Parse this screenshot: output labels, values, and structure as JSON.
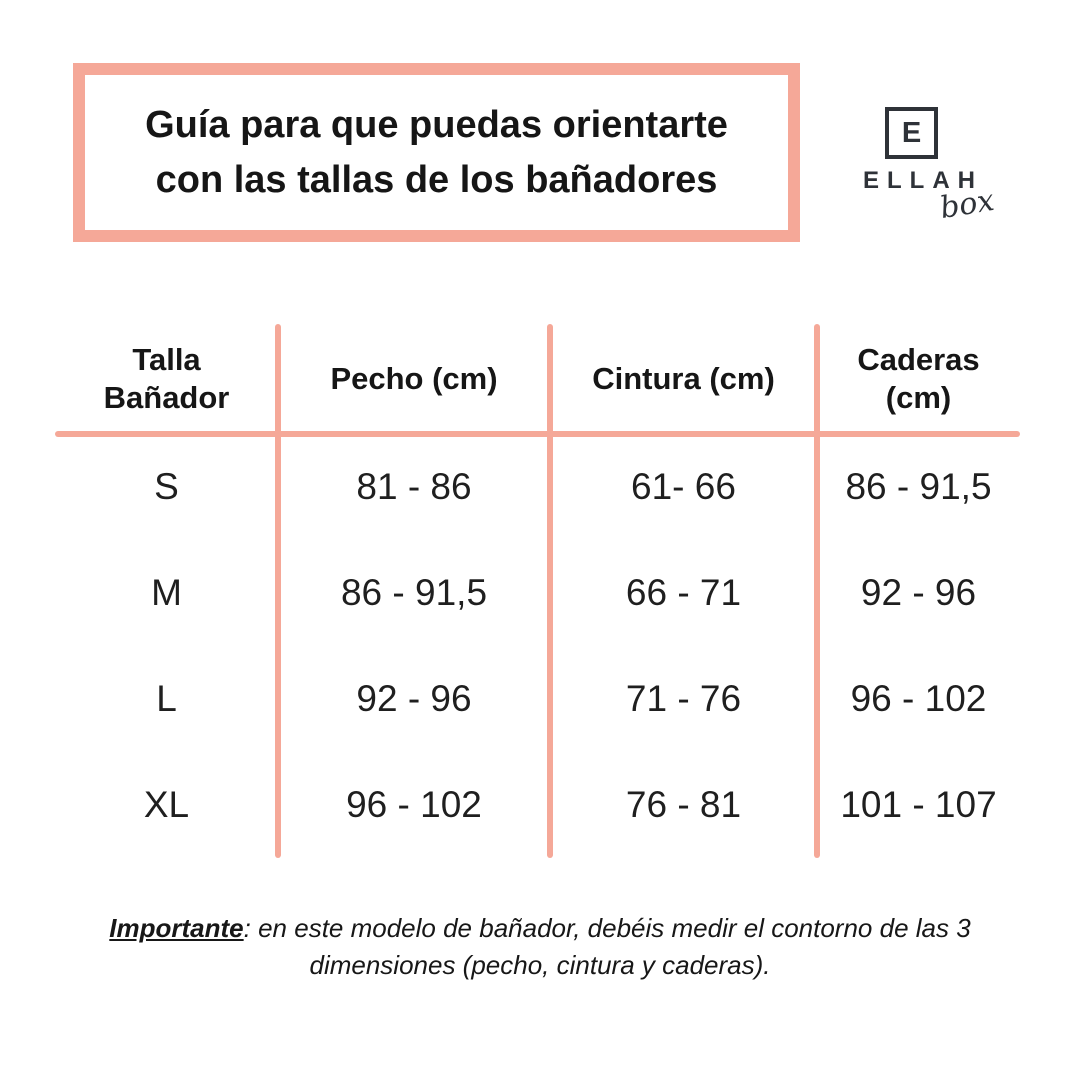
{
  "colors": {
    "accent": "#F5A898",
    "logo": "#2E3238",
    "text": "#161616"
  },
  "title": {
    "line1": "Guía para que puedas orientarte",
    "line2": "con las tallas de los bañadores"
  },
  "logo": {
    "monogram": "E",
    "name": "ELLAH",
    "tagline": "box"
  },
  "table": {
    "headers": {
      "size": {
        "line1": "Talla",
        "line2": "Bañador"
      },
      "chest": {
        "line1": "Pecho (cm)"
      },
      "waist": {
        "line1": "Cintura (cm)"
      },
      "hips": {
        "line1": "Caderas",
        "line2": "(cm)"
      }
    },
    "rows": [
      {
        "size": "S",
        "chest": "81 - 86",
        "waist": "61- 66",
        "hips": "86 - 91,5"
      },
      {
        "size": "M",
        "chest": "86 - 91,5",
        "waist": "66 - 71",
        "hips": "92 - 96"
      },
      {
        "size": "L",
        "chest": "92 - 96",
        "waist": "71 - 76",
        "hips": "96 - 102"
      },
      {
        "size": "XL",
        "chest": "96 - 102",
        "waist": "76 - 81",
        "hips": "101 - 107"
      }
    ]
  },
  "note": {
    "lead": "Importante",
    "line1_rest": ": en este modelo de bañador, debéis medir el contorno de las 3",
    "line2": "dimensiones (pecho, cintura y caderas)."
  }
}
